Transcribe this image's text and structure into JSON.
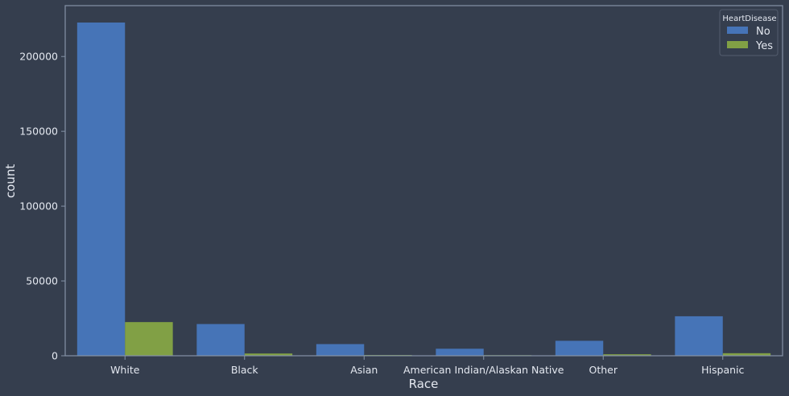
{
  "chart_data": {
    "type": "bar",
    "title": "",
    "xlabel": "Race",
    "ylabel": "count",
    "categories": [
      "White",
      "Black",
      "Asian",
      "American Indian/Alaskan Native",
      "Other",
      "Hispanic"
    ],
    "series": [
      {
        "name": "No",
        "values": [
          222700,
          21200,
          7800,
          4700,
          10000,
          26400
        ],
        "color": "#4674b7"
      },
      {
        "name": "Yes",
        "values": [
          22500,
          1500,
          500,
          400,
          1000,
          1700
        ],
        "color": "#81a045"
      }
    ],
    "ylim": [
      0,
      234000
    ],
    "yticks": [
      0,
      50000,
      100000,
      150000,
      200000
    ],
    "legend": {
      "title": "HeartDisease",
      "placement": "top-right"
    },
    "grid": false,
    "colors": {
      "background": "#353e4e",
      "axis": "#8593a7",
      "text": "#e4e8f0"
    }
  }
}
